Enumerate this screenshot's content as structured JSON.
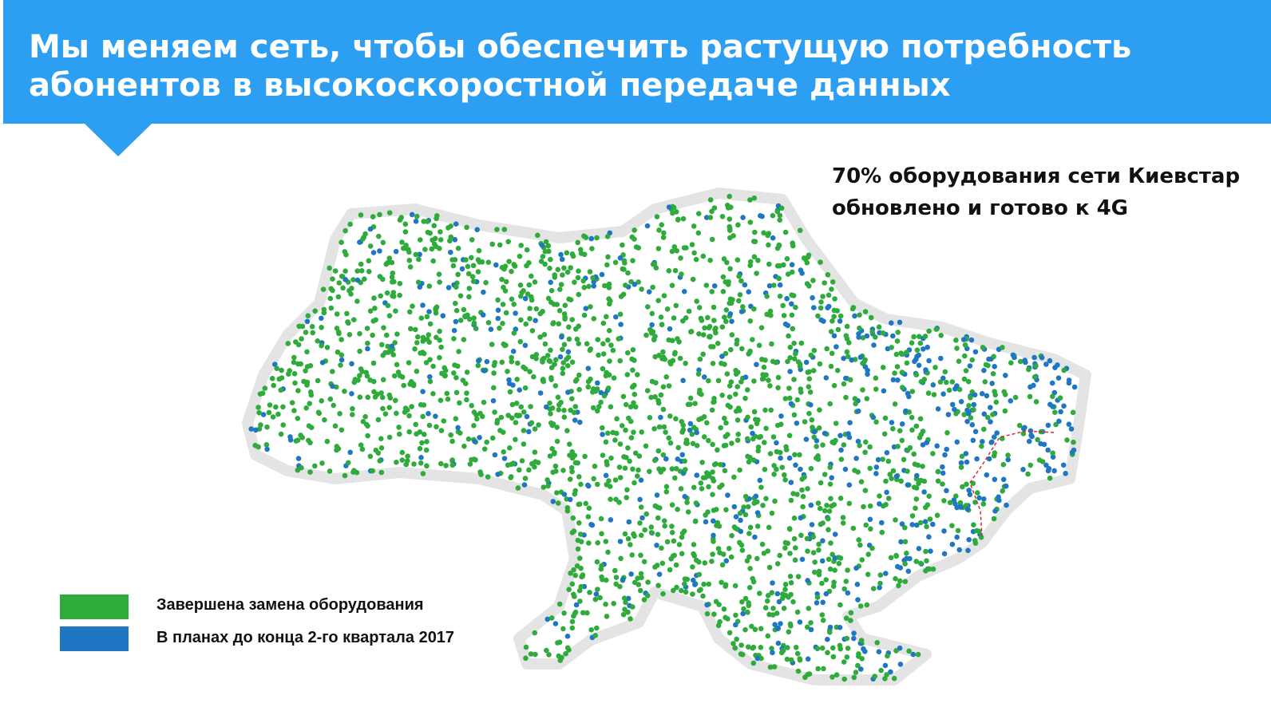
{
  "header": {
    "title_lines": [
      "Мы меняем сеть, чтобы обеспечить растущую потребность",
      "абонентов в высокоскоростной передаче данных"
    ]
  },
  "callout": {
    "lines": [
      "70% оборудования сети Киевстар",
      "обновлено и готово к 4G"
    ]
  },
  "legend": {
    "items": [
      {
        "label": "Завершена замена оборудования",
        "color": "#2fab3c"
      },
      {
        "label": "В планах до конца 2-го квартала 2017",
        "color": "#1f77c4"
      }
    ]
  }
}
